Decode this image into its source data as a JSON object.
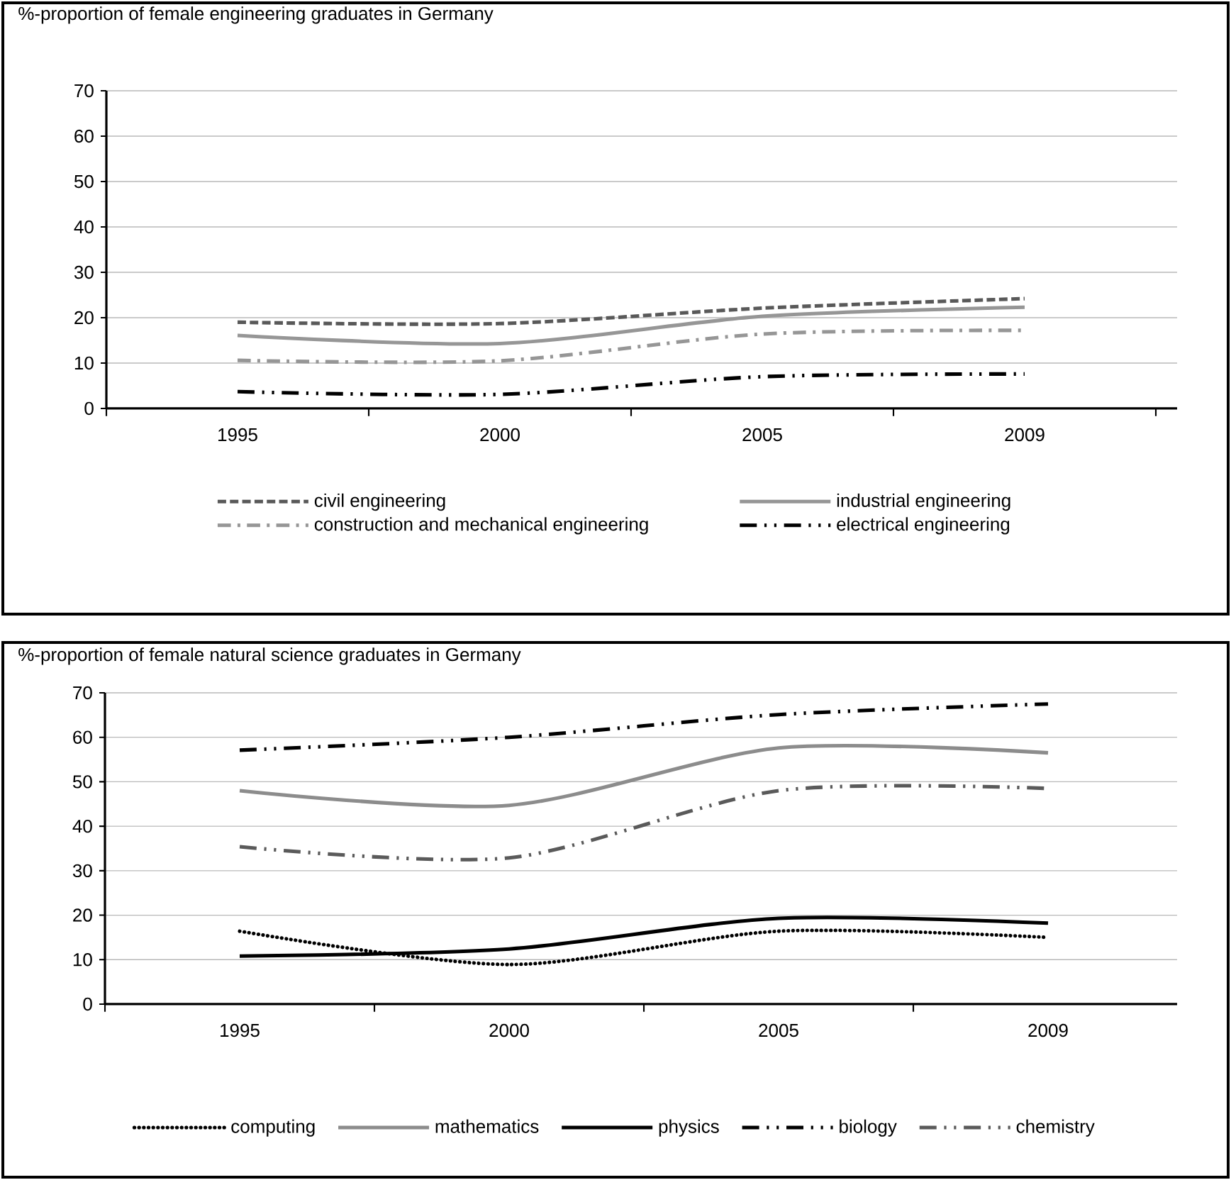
{
  "chart_data": [
    {
      "type": "line",
      "title": "%-proportion of female engineering graduates in Germany",
      "categories": [
        "1995",
        "2000",
        "2005",
        "2009"
      ],
      "ylim": [
        0,
        70
      ],
      "yticks": [
        0,
        10,
        20,
        30,
        40,
        50,
        60,
        70
      ],
      "grid": "y",
      "legend": "bottom",
      "series": [
        {
          "name": "civil engineering",
          "color": "#595959",
          "line_style": "dashed",
          "values": [
            19.0,
            18.7,
            22.1,
            24.2
          ]
        },
        {
          "name": "industrial engineering",
          "color": "#969696",
          "line_style": "solid",
          "values": [
            16.1,
            14.3,
            20.3,
            22.3
          ]
        },
        {
          "name": "construction and mechanical engineering",
          "color": "#969696",
          "line_style": "dashdotted",
          "values": [
            10.6,
            10.5,
            16.4,
            17.2
          ]
        },
        {
          "name": "electrical engineering",
          "color": "#000000",
          "line_style": "dashdotdotted",
          "values": [
            3.7,
            3.1,
            7.0,
            7.6
          ]
        }
      ]
    },
    {
      "type": "line",
      "title": "%-proportion of female natural science graduates in Germany",
      "categories": [
        "1995",
        "2000",
        "2005",
        "2009"
      ],
      "ylim": [
        0,
        70
      ],
      "yticks": [
        0,
        10,
        20,
        30,
        40,
        50,
        60,
        70
      ],
      "grid": "y",
      "legend": "bottom",
      "series": [
        {
          "name": "computing",
          "color": "#000000",
          "line_style": "dotted",
          "values": [
            16.4,
            8.9,
            16.4,
            15.0
          ]
        },
        {
          "name": "mathematics",
          "color": "#8c8c8c",
          "line_style": "solid",
          "values": [
            48.0,
            44.7,
            57.6,
            56.5
          ]
        },
        {
          "name": "physics",
          "color": "#000000",
          "line_style": "solid",
          "values": [
            10.8,
            12.4,
            19.3,
            18.2
          ]
        },
        {
          "name": "biology",
          "color": "#000000",
          "line_style": "dashdotdotted",
          "values": [
            57.1,
            60.0,
            65.1,
            67.5
          ]
        },
        {
          "name": "chemistry",
          "color": "#5a5a5a",
          "line_style": "dashdotdotted",
          "values": [
            35.4,
            32.9,
            48.0,
            48.5
          ]
        }
      ]
    }
  ]
}
